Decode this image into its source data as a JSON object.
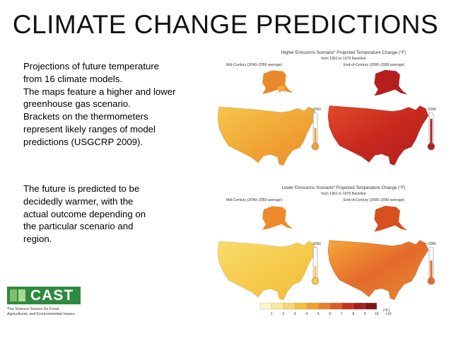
{
  "slide": {
    "title": "CLIMATE CHANGE PREDICTIONS",
    "paragraph1": [
      "Projections of future temperature",
      "from 16 climate models.",
      "The maps feature a higher and lower",
      "greenhouse gas scenario.",
      "Brackets on the thermometers",
      "represent likely ranges of model",
      "predictions (USGCRP 2009)."
    ],
    "paragraph2": [
      "The future is predicted to be",
      "decidedly warmer, with the",
      "actual outcome depending on",
      "the particular scenario and",
      "region."
    ]
  },
  "figure": {
    "higher": {
      "title": "Higher Emissions Scenario* Projected Temperature Change (°F)",
      "baseline": "from 1961 to 1979 Baseline",
      "mid_label": "Mid-Century (2040–2059 average)",
      "end_label": "End-of-Century (2080–2099 average)",
      "thermo_mid": "~2050",
      "thermo_end": "~2090"
    },
    "lower": {
      "title": "Lower Emissions Scenario* Projected Temperature Change (°F)",
      "baseline": "from 1961 to 1979 Baseline",
      "mid_label": "Mid-Century (2040–2059 average)",
      "end_label": "End-of-Century (2080–2099 average)",
      "thermo_mid": "~2050",
      "thermo_end": "~2090"
    },
    "legend": {
      "unit": "(°F)",
      "ticks": [
        "1",
        "2",
        "3",
        "4",
        "5",
        "6",
        "7",
        "8",
        "9",
        "10",
        ">10"
      ],
      "colors": [
        "#fdf6c8",
        "#fbeaa0",
        "#f8d86a",
        "#f5c03c",
        "#f0a030",
        "#e87e28",
        "#dc5a24",
        "#c83422",
        "#a8201e",
        "#7f1418"
      ]
    }
  },
  "logo": {
    "name": "CAST",
    "tagline_lines": [
      "The Science Source for Food,",
      "Agricultural, and Environmental Issues"
    ],
    "colors": {
      "dark": "#2e8b3e",
      "light": "#7fbf6a"
    }
  }
}
